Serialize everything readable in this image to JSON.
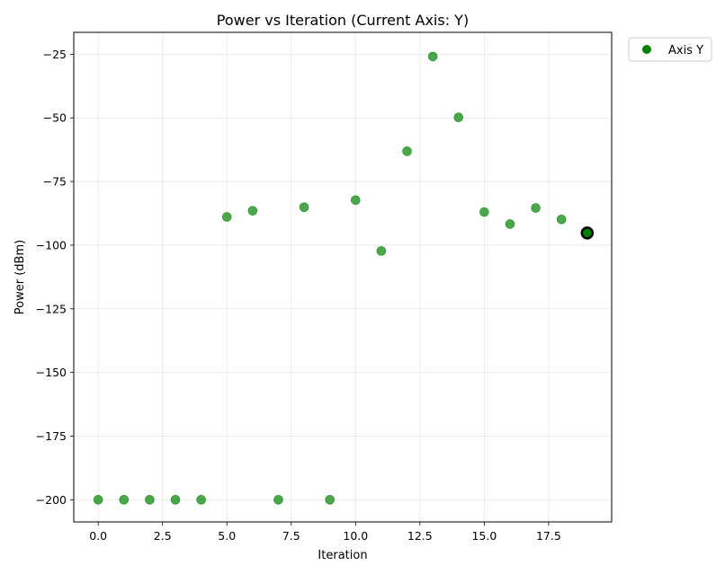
{
  "chart_data": {
    "type": "scatter",
    "title": "Power vs Iteration (Current Axis: Y)",
    "xlabel": "Iteration",
    "ylabel": "Power (dBm)",
    "xlim": [
      -0.95,
      19.95
    ],
    "ylim": [
      -208.7,
      -16.4
    ],
    "xticks": [
      0.0,
      2.5,
      5.0,
      7.5,
      10.0,
      12.5,
      15.0,
      17.5
    ],
    "xtick_labels": [
      "0.0",
      "2.5",
      "5.0",
      "7.5",
      "10.0",
      "12.5",
      "15.0",
      "17.5"
    ],
    "yticks": [
      -25,
      -50,
      -75,
      -100,
      -125,
      -150,
      -175,
      -200
    ],
    "ytick_labels": [
      "−25",
      "−50",
      "−75",
      "−100",
      "−125",
      "−150",
      "−175",
      "−200"
    ],
    "grid": true,
    "legend_position": "outside-top-right",
    "series": [
      {
        "name": "Axis Y",
        "color": "#008000",
        "x": [
          0,
          1,
          2,
          3,
          4,
          5,
          6,
          7,
          8,
          9,
          10,
          11,
          12,
          13,
          14,
          15,
          16,
          17,
          18,
          19
        ],
        "y": [
          -200,
          -200,
          -200,
          -200,
          -200,
          -88.9,
          -86.5,
          -200,
          -85.1,
          -200,
          -82.3,
          -102.3,
          -63.1,
          -25.9,
          -49.8,
          -87.0,
          -91.7,
          -85.4,
          -89.9,
          -95.2
        ]
      }
    ],
    "highlight": {
      "x": 19,
      "y": -95.2,
      "note": "current point, black outline"
    }
  }
}
